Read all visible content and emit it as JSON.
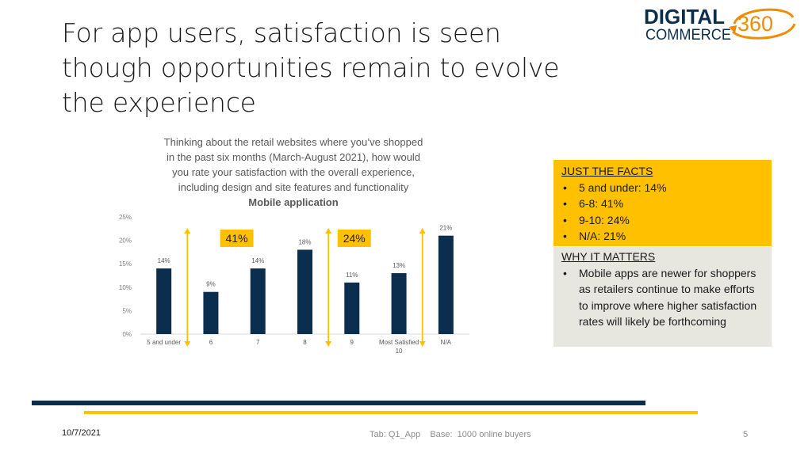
{
  "slide": {
    "title_lines": [
      "For app users, satisfaction is seen",
      "though opportunities remain to evolve",
      "the experience"
    ],
    "logo": {
      "line1": "DIGITAL",
      "line2": "COMMERCE",
      "number": "360"
    },
    "question_lines": [
      "Thinking about the retail websites where you’ve shopped",
      "in the past six months (March-August 2021), how would",
      "you rate your satisfaction with the overall experience,",
      "including design and site features and functionality"
    ],
    "subtitle": "Mobile application",
    "facts": {
      "heading": "JUST THE FACTS",
      "items": [
        "5 and under:  14%",
        "6-8:  41%",
        "9-10:  24%",
        "N/A:  21%"
      ]
    },
    "matters": {
      "heading": "WHY IT MATTERS",
      "item": "Mobile apps are newer for shoppers as retailers continue to make efforts to improve where higher satisfaction rates will likely be forthcoming"
    },
    "date": "10/7/2021",
    "footer": "Tab: Q1_App    Base:  1000 online buyers",
    "page_number": "5"
  },
  "chart_data": {
    "type": "bar",
    "title": "Mobile application",
    "categories": [
      "5 and under",
      "6",
      "7",
      "8",
      "9",
      "Most Satisfied 10",
      "N/A"
    ],
    "category_labels": [
      [
        "5 and under"
      ],
      [
        "6"
      ],
      [
        "7"
      ],
      [
        "8"
      ],
      [
        "9"
      ],
      [
        "Most Satisfied",
        "10"
      ],
      [
        "N/A"
      ]
    ],
    "values": [
      14,
      9,
      14,
      18,
      11,
      13,
      21
    ],
    "value_labels": [
      "14%",
      "9%",
      "14%",
      "18%",
      "11%",
      "13%",
      "21%"
    ],
    "y_ticks": [
      "0%",
      "5%",
      "10%",
      "15%",
      "20%",
      "25%"
    ],
    "ylim": [
      0,
      25
    ],
    "grid": false,
    "bar_color": "#0b2e4f",
    "accent_color": "#ffc000",
    "group_annotations": [
      {
        "label": "41%",
        "from_category": 1,
        "to_category": 3
      },
      {
        "label": "24%",
        "from_category": 4,
        "to_category": 5
      }
    ]
  }
}
